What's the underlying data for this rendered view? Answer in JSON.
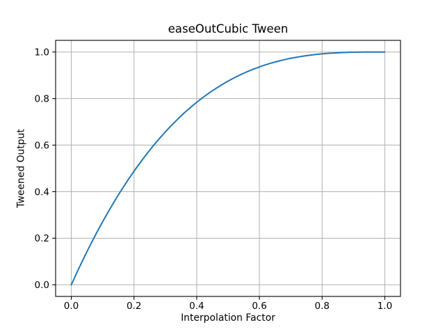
{
  "figure": {
    "background": "#ffffff"
  },
  "chart_data": {
    "type": "line",
    "title": "easeOutCubic Tween",
    "xlabel": "Interpolation Factor",
    "ylabel": "Tweened Output",
    "xlim": [
      -0.05,
      1.05
    ],
    "ylim": [
      -0.05,
      1.05
    ],
    "xticks": [
      0.0,
      0.2,
      0.4,
      0.6,
      0.8,
      1.0
    ],
    "xtick_labels": [
      "0.0",
      "0.2",
      "0.4",
      "0.6",
      "0.8",
      "1.0"
    ],
    "yticks": [
      0.0,
      0.2,
      0.4,
      0.6,
      0.8,
      1.0
    ],
    "ytick_labels": [
      "0.0",
      "0.2",
      "0.4",
      "0.6",
      "0.8",
      "1.0"
    ],
    "grid": true,
    "legend_position": "none",
    "x": [
      0.0,
      0.02,
      0.04,
      0.06,
      0.08,
      0.1,
      0.12,
      0.14,
      0.16,
      0.18,
      0.2,
      0.22,
      0.24,
      0.26,
      0.28,
      0.3,
      0.32,
      0.34,
      0.36,
      0.38,
      0.4,
      0.42,
      0.44,
      0.46,
      0.48,
      0.5,
      0.52,
      0.54,
      0.56,
      0.58,
      0.6,
      0.62,
      0.64,
      0.66,
      0.68,
      0.7,
      0.72,
      0.74,
      0.76,
      0.78,
      0.8,
      0.82,
      0.84,
      0.86,
      0.88,
      0.9,
      0.92,
      0.94,
      0.96,
      0.98,
      1.0
    ],
    "series": [
      {
        "values": [
          0.0,
          0.0588,
          0.1153,
          0.1694,
          0.2213,
          0.271,
          0.3185,
          0.3639,
          0.4073,
          0.4486,
          0.488,
          0.5254,
          0.561,
          0.5948,
          0.6268,
          0.657,
          0.6856,
          0.7125,
          0.7379,
          0.7617,
          0.784,
          0.8049,
          0.8244,
          0.8425,
          0.8594,
          0.875,
          0.8894,
          0.9027,
          0.9148,
          0.9259,
          0.936,
          0.9451,
          0.9533,
          0.9607,
          0.9672,
          0.973,
          0.978,
          0.9824,
          0.9862,
          0.9894,
          0.992,
          0.9942,
          0.9959,
          0.9973,
          0.9983,
          0.999,
          0.9995,
          0.9998,
          0.9999,
          1.0,
          1.0
        ]
      }
    ],
    "colors": {
      "line": "#1f77b4",
      "grid": "#b0b0b0",
      "spine": "#000000",
      "tick_text": "#000000",
      "background": "#ffffff"
    }
  }
}
